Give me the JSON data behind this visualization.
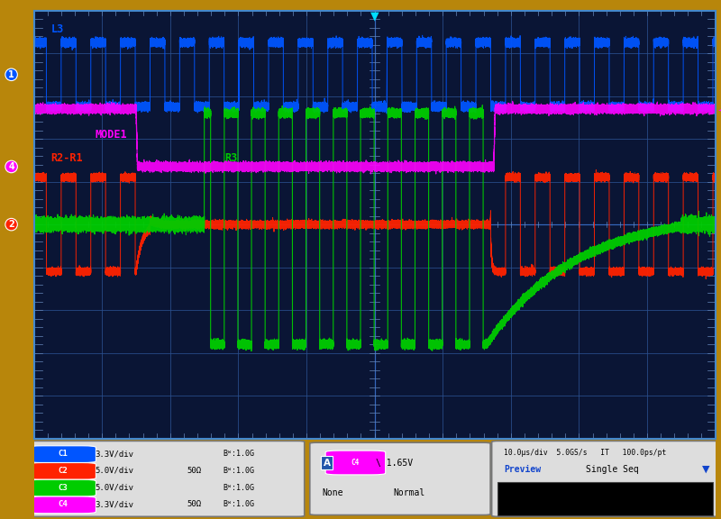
{
  "bg_color": "#b8860b",
  "grid_color": "#2a5090",
  "plot_bg": "#0a1535",
  "border_color": "#4488cc",
  "ch1_color": "#0055ff",
  "ch2_color": "#ff2200",
  "ch3_color": "#00cc00",
  "ch4_color": "#ff00ff",
  "footer_bg": "#cccccc",
  "label_L3": "L3",
  "label_R2R1": "R2-R1",
  "label_R3": "R3",
  "label_MODE1": "MODE1"
}
